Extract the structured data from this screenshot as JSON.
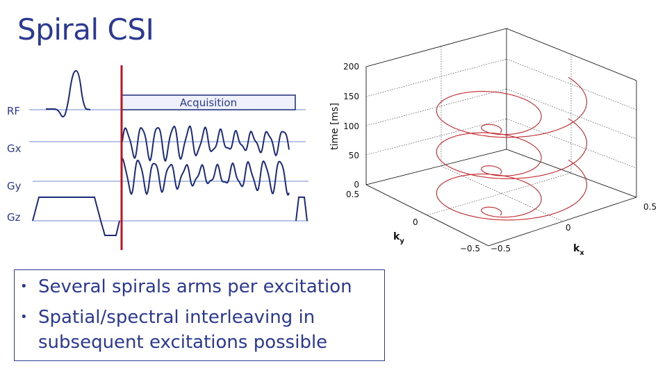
{
  "slide": {
    "title": "Spiral CSI",
    "bullets": [
      "Several spirals arms per excitation",
      "Spatial/spectral interleaving in subsequent excitations possible"
    ]
  },
  "sequence": {
    "channels": [
      "RF",
      "Gx",
      "Gy",
      "Gz"
    ],
    "acquisition_label": "Acquisition",
    "colors": {
      "line": "#9fb1e0",
      "waveform": "#1b2a78",
      "marker": "#c1121f",
      "acq_fill": "#eef1fb"
    }
  },
  "plot3d": {
    "zlabel": "time [ms]",
    "zticks": [
      "0",
      "50",
      "100",
      "150",
      "200"
    ],
    "ylabel": "k",
    "ylabel_sub": "y",
    "xlabel": "k",
    "xlabel_sub": "x",
    "yticks": [
      "0.5",
      "0",
      "−0.5"
    ],
    "xticks": [
      "−0.5",
      "0",
      "0.5"
    ],
    "curve_color": "#c0262c"
  }
}
